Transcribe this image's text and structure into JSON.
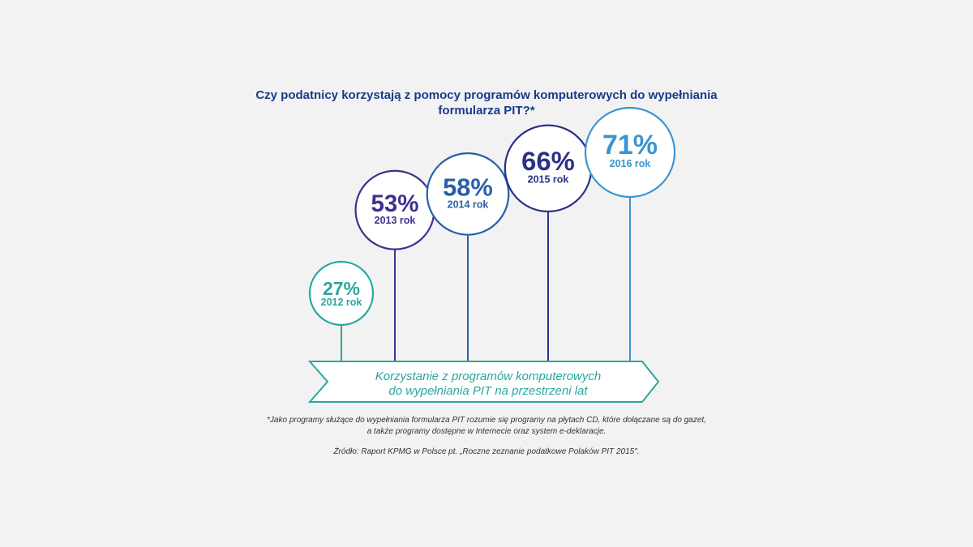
{
  "chart_data": {
    "type": "bar",
    "title_lines": [
      "Czy podatnicy korzystają z pomocy programów komputerowych do wypełniania",
      "formularza PIT?*"
    ],
    "categories": [
      "2012 rok",
      "2013 rok",
      "2014 rok",
      "2015 rok",
      "2016 rok"
    ],
    "values": [
      27,
      53,
      58,
      66,
      71
    ],
    "value_labels": [
      "27%",
      "53%",
      "58%",
      "66%",
      "71%"
    ],
    "colors": [
      "#2aa7a0",
      "#3d3290",
      "#2a5fa8",
      "#2b3087",
      "#3a95cf"
    ],
    "circle_fill": "#ffffff",
    "arrow_color": "#2aa7a0",
    "arrow_lines": [
      "Korzystanie z programów komputerowych",
      "do wypełniania PIT na przestrzeni lat"
    ]
  },
  "footnote_lines": [
    "*Jako programy służące do wypełniania formularza PIT rozumie się programy na płytach CD, które dołączane są do gazet,",
    "a także programy dostępne w Internecie oraz system e-deklaracje."
  ],
  "source": "Źródło: Raport KPMG w Polsce pt. „Roczne zeznanie podatkowe Polaków PIT 2015\"."
}
